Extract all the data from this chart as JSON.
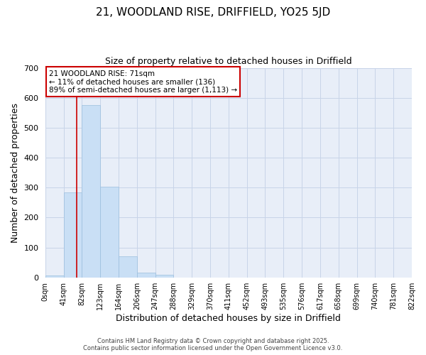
{
  "title": "21, WOODLAND RISE, DRIFFIELD, YO25 5JD",
  "subtitle": "Size of property relative to detached houses in Driffield",
  "xlabel": "Distribution of detached houses by size in Driffield",
  "ylabel": "Number of detached properties",
  "bin_labels": [
    "0sqm",
    "41sqm",
    "82sqm",
    "123sqm",
    "164sqm",
    "206sqm",
    "247sqm",
    "288sqm",
    "329sqm",
    "370sqm",
    "411sqm",
    "452sqm",
    "493sqm",
    "535sqm",
    "576sqm",
    "617sqm",
    "658sqm",
    "699sqm",
    "740sqm",
    "781sqm",
    "822sqm"
  ],
  "bar_values": [
    7,
    285,
    575,
    302,
    70,
    15,
    9,
    0,
    0,
    0,
    0,
    0,
    0,
    0,
    0,
    0,
    0,
    0,
    0,
    0
  ],
  "bar_color": "#c9dff5",
  "bar_edge_color": "#9bbedd",
  "grid_color": "#c8d4e8",
  "background_color": "#e8eef8",
  "vline_x_index": 1.73,
  "vline_color": "#cc0000",
  "ylim": [
    0,
    700
  ],
  "yticks": [
    0,
    100,
    200,
    300,
    400,
    500,
    600,
    700
  ],
  "annotation_text": "21 WOODLAND RISE: 71sqm\n← 11% of detached houses are smaller (136)\n89% of semi-detached houses are larger (1,113) →",
  "annotation_box_color": "#ffffff",
  "annotation_border_color": "#cc0000",
  "footer_line1": "Contains HM Land Registry data © Crown copyright and database right 2025.",
  "footer_line2": "Contains public sector information licensed under the Open Government Licence v3.0.",
  "n_bars": 20
}
